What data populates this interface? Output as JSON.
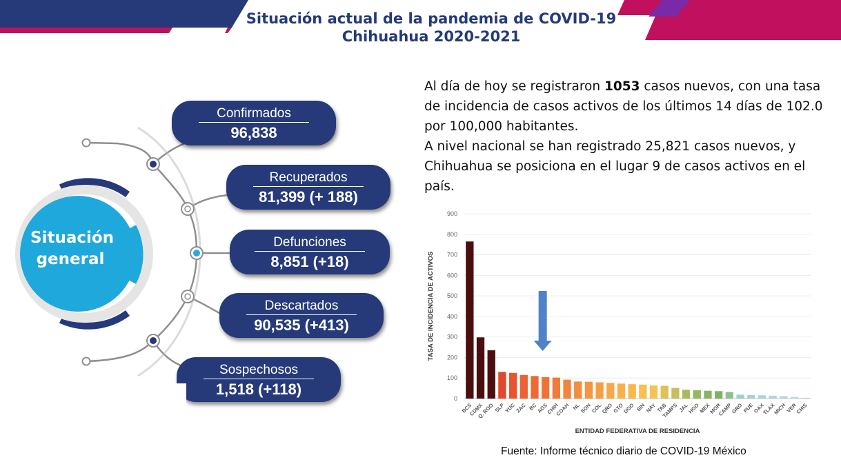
{
  "header": {
    "title_line1": "Situación actual de la pandemia de COVID-19",
    "title_line2": "Chihuahua 2020-2021",
    "colors": {
      "navy": "#263a7a",
      "magenta": "#c0105e",
      "purple": "#6b2fa0"
    }
  },
  "summary": {
    "center_label_line1": "Situación",
    "center_label_line2": "general",
    "items": [
      {
        "label": "Confirmados",
        "value": "96,838"
      },
      {
        "label": "Recuperados",
        "value": "81,399 (+ 188)"
      },
      {
        "label": "Defunciones",
        "value": "8,851 (+18)"
      },
      {
        "label": "Descartados",
        "value": "90,535 (+413)"
      },
      {
        "label": "Sospechosos",
        "value": "1,518 (+118)"
      }
    ]
  },
  "info": {
    "p1_prefix": "Al día de hoy se registraron ",
    "p1_bold": "1053",
    "p1_suffix": " casos nuevos, con una tasa de incidencia de casos activos de los últimos 14 días de 102.0 por 100,000 habitantes.",
    "p2": "A nivel nacional se han registrado 25,821 casos nuevos, y Chihuahua se posiciona en el lugar 9 de casos activos en el país."
  },
  "chart_data": {
    "type": "bar",
    "ylabel": "TASA DE INCIDENCIA DE ACTIVOS",
    "xlabel": "ENTIDAD FEDERATIVA DE RESIDENCIA",
    "ylim": [
      0,
      900
    ],
    "yticks": [
      0,
      100,
      200,
      300,
      400,
      500,
      600,
      700,
      800,
      900
    ],
    "grid": true,
    "highlight": "CHIH",
    "categories": [
      "BCS",
      "CDMX",
      "Q. ROO",
      "SLP",
      "YUC",
      "ZAC",
      "BC",
      "AGS",
      "CHIH",
      "COAH",
      "NL",
      "SON",
      "COL",
      "QRO",
      "GTO",
      "DGO",
      "SIN",
      "NAY",
      "TAB",
      "TAMPS",
      "JAL",
      "HGO",
      "MEX",
      "MOR",
      "CAMP",
      "GRO",
      "PUE",
      "OAX",
      "TLAX",
      "MICH",
      "VER",
      "CHIS"
    ],
    "values": [
      765,
      298,
      235,
      130,
      125,
      115,
      110,
      104,
      102,
      92,
      83,
      82,
      79,
      76,
      73,
      70,
      68,
      64,
      62,
      52,
      43,
      41,
      38,
      36,
      32,
      19,
      17,
      16,
      14,
      12,
      8,
      4
    ],
    "colors": [
      "#4a0e0e",
      "#4a0e0e",
      "#4a0e0e",
      "#e2472c",
      "#e7542e",
      "#ea6332",
      "#ec6b35",
      "#ee7337",
      "#f07b3a",
      "#f2843d",
      "#f48d40",
      "#f59542",
      "#f69e45",
      "#f7a748",
      "#f8b04b",
      "#f8b84e",
      "#f8bf51",
      "#f5c355",
      "#dfc15a",
      "#c8be5e",
      "#a7ba61",
      "#94b762",
      "#86b462",
      "#7fb362",
      "#8ec190",
      "#9fcfca",
      "#a6d4d6",
      "#aad6da",
      "#aed7dc",
      "#b3d9df",
      "#b8dbe1",
      "#bcdde3"
    ]
  },
  "source": "Fuente: Informe técnico diario de COVID-19 México"
}
